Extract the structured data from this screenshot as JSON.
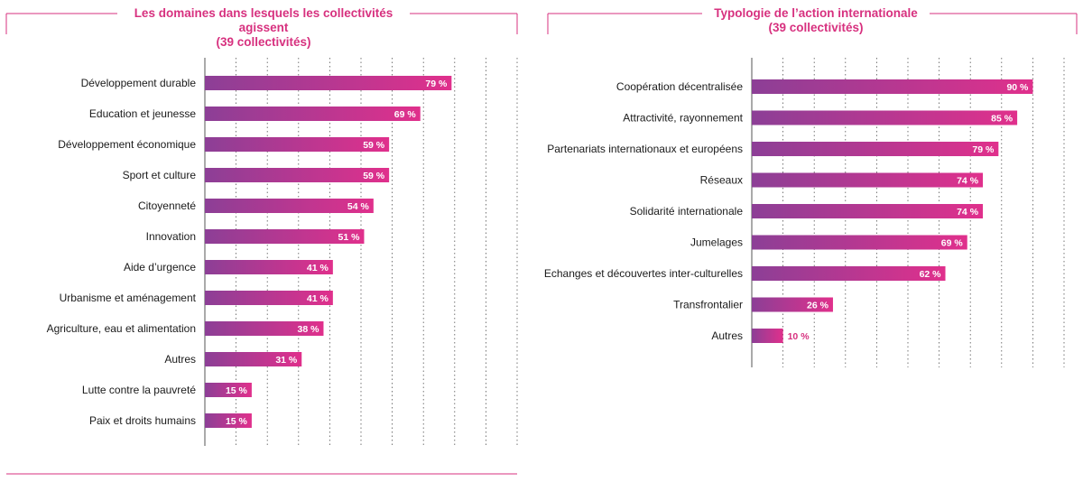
{
  "colors": {
    "accent": "#d7317f",
    "bar_start": "#8c3f96",
    "bar_end": "#e0308c",
    "label_dark": "#1a1a1a",
    "grid": "#555555"
  },
  "chart_data": [
    {
      "type": "bar",
      "orientation": "horizontal",
      "title": "Les domaines dans lesquels les collectivités agissent",
      "subtitle": "(39 collectivités)",
      "categories": [
        "Développement durable",
        "Education et jeunesse",
        "Développement économique",
        "Sport et culture",
        "Citoyenneté",
        "Innovation",
        "Aide d’urgence",
        "Urbanisme et aménagement",
        "Agriculture, eau et alimentation",
        "Autres",
        "Lutte contre la pauvreté",
        "Paix et droits humains"
      ],
      "values": [
        79,
        69,
        59,
        59,
        54,
        51,
        41,
        41,
        38,
        31,
        15,
        15
      ],
      "value_labels": [
        "79 %",
        "69 %",
        "59 %",
        "59 %",
        "54 %",
        "51 %",
        "41 %",
        "41 %",
        "38 %",
        "31 %",
        "15 %",
        "15 %"
      ],
      "xlim": [
        0,
        100
      ],
      "grid": true,
      "xlabel": "",
      "ylabel": ""
    },
    {
      "type": "bar",
      "orientation": "horizontal",
      "title": "Typologie de l’action internationale",
      "subtitle": "(39 collectivités)",
      "categories": [
        "Coopération décentralisée",
        "Attractivité, rayonnement",
        "Partenariats internationaux et européens",
        "Réseaux",
        "Solidarité internationale",
        "Jumelages",
        "Echanges et découvertes inter-culturelles",
        "Transfrontalier",
        "Autres"
      ],
      "values": [
        90,
        85,
        79,
        74,
        74,
        69,
        62,
        26,
        10
      ],
      "value_labels": [
        "90 %",
        "85 %",
        "79 %",
        "74 %",
        "74 %",
        "69 %",
        "62 %",
        "26 %",
        "10 %"
      ],
      "xlim": [
        0,
        100
      ],
      "grid": true,
      "xlabel": "",
      "ylabel": ""
    }
  ]
}
